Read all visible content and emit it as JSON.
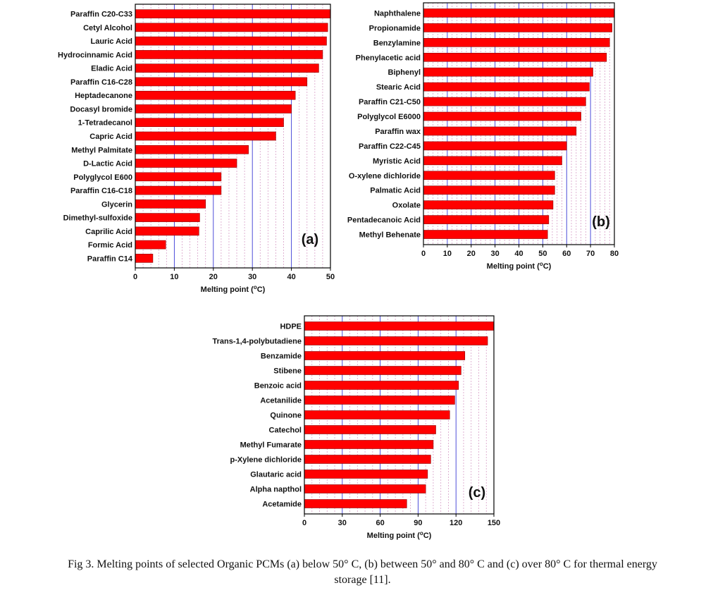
{
  "caption": [
    "Fig 3. Melting points of selected Organic PCMs (a) below 50° C, (b) between 50° and 80° C and (c) over 80° C for thermal energy",
    "storage [11]."
  ],
  "colors": {
    "bar": "#ff0000",
    "bar_edge": "#8b0000",
    "major_grid": "#3b3bd6",
    "minor_grid": "#d8a0c8"
  },
  "chart_data": [
    {
      "type": "bar",
      "orientation": "horizontal",
      "panel_label": "(a)",
      "xlabel_prefix": "Melting point (",
      "xlabel_sup": "o",
      "xlabel_suffix": "C)",
      "xlim": [
        0,
        50
      ],
      "xticks": [
        0,
        10,
        20,
        30,
        40,
        50
      ],
      "grid": true,
      "categories": [
        "Paraffin C20-C33",
        "Cetyl Alcohol",
        "Lauric Acid",
        "Hydrocinnamic Acid",
        "Eladic Acid",
        "Paraffin C16-C28",
        "Heptadecanone",
        "Docasyl bromide",
        "1-Tetradecanol",
        "Capric Acid",
        "Methyl Palmitate",
        "D-Lactic Acid",
        "Polyglycol E600",
        "Paraffin C16-C18",
        "Glycerin",
        "Dimethyl-sulfoxide",
        "Caprilic Acid",
        "Formic Acid",
        "Paraffin C14"
      ],
      "values": [
        50,
        49.3,
        49,
        48,
        47,
        44,
        41,
        40,
        38,
        36,
        29,
        26,
        22,
        22,
        18,
        16.5,
        16.3,
        7.8,
        4.5
      ]
    },
    {
      "type": "bar",
      "orientation": "horizontal",
      "panel_label": "(b)",
      "xlabel_prefix": "Melting point (",
      "xlabel_sup": "o",
      "xlabel_suffix": "C)",
      "xlim": [
        0,
        80
      ],
      "xticks": [
        0,
        10,
        20,
        30,
        40,
        50,
        60,
        70,
        80
      ],
      "grid": true,
      "categories": [
        "Naphthalene",
        "Propionamide",
        "Benzylamine",
        "Phenylacetic acid",
        "Biphenyl",
        "Stearic Acid",
        "Paraffin C21-C50",
        "Polyglycol E6000",
        "Paraffin wax",
        "Paraffin C22-C45",
        "Myristic Acid",
        "O-xylene dichloride",
        "Palmatic Acid",
        "Oxolate",
        "Pentadecanoic Acid",
        "Methyl Behenate"
      ],
      "values": [
        80,
        79,
        78,
        76.7,
        71,
        69.5,
        68,
        66,
        64,
        60,
        58,
        55,
        55,
        54.3,
        52.5,
        52
      ]
    },
    {
      "type": "bar",
      "orientation": "horizontal",
      "panel_label": "(c)",
      "xlabel_prefix": "Melting point (",
      "xlabel_sup": "o",
      "xlabel_suffix": "C)",
      "xlim": [
        0,
        150
      ],
      "xticks": [
        0,
        30,
        60,
        90,
        120,
        150
      ],
      "grid": true,
      "categories": [
        "HDPE",
        "Trans-1,4-polybutadiene",
        "Benzamide",
        "Stibene",
        "Benzoic acid",
        "Acetanilide",
        "Quinone",
        "Catechol",
        "Methyl Fumarate",
        "p-Xylene dichloride",
        "Glautaric acid",
        "Alpha napthol",
        "Acetamide"
      ],
      "values": [
        150,
        145,
        127,
        124,
        122,
        119,
        115,
        104,
        102,
        100,
        97.5,
        96,
        81
      ]
    }
  ]
}
